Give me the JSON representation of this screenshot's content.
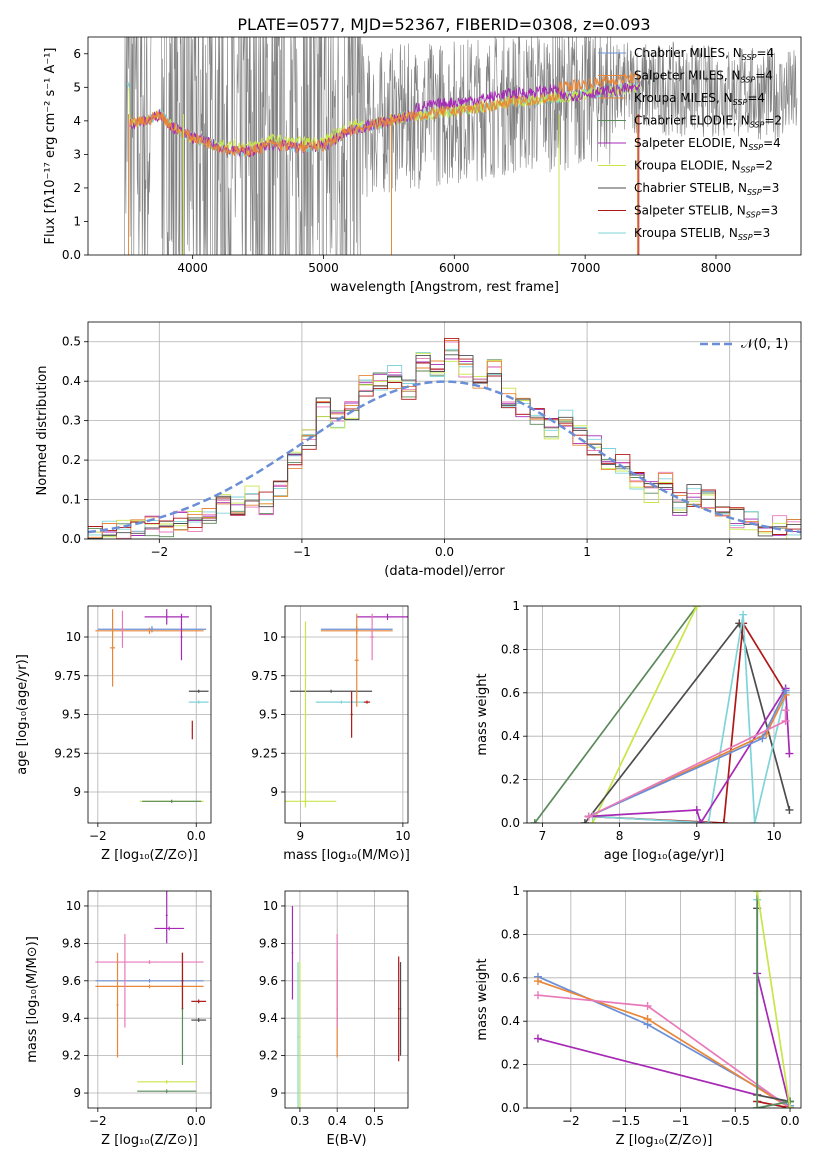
{
  "figure_title": "PLATE=0577, MJD=52367, FIBERID=0308, z=0.093",
  "colors": {
    "Chabrier MILES": "#6b8fd6",
    "Salpeter MILES": "#e8873a",
    "Kroupa MILES": "#e8873a",
    "Chabrier ELODIE": "#5a8a5a",
    "Salpeter ELODIE": "#a62ab5",
    "Kroupa ELODIE": "#c8e64a",
    "Chabrier STELIB": "#4d4d4d",
    "Salpeter STELIB": "#b01818",
    "Kroupa STELIB": "#7fd4d9",
    "pink": "#e87aba",
    "data": "#808080",
    "normal": "#6b8fd6"
  },
  "chart_data": [
    {
      "id": "spectrum",
      "type": "line",
      "title": "PLATE=0577, MJD=52367, FIBERID=0308, z=0.093",
      "xlabel": "wavelength [Angstrom, rest frame]",
      "ylabel": "Flux [fλ10⁻¹⁷ erg cm⁻² s⁻¹ A⁻¹]",
      "xlim": [
        3200,
        8650
      ],
      "ylim": [
        0,
        6.5
      ],
      "xticks": [
        4000,
        5000,
        6000,
        7000,
        8000
      ],
      "yticks": [
        0,
        1,
        2,
        3,
        4,
        5,
        6
      ],
      "grid": false,
      "legend": "upper-right",
      "legend_entries": [
        {
          "label": "Chabrier MILES, N",
          "sub": "SSP",
          "suffix": "=4",
          "color": "#6b8fd6"
        },
        {
          "label": "Salpeter MILES, N",
          "sub": "SSP",
          "suffix": "=4",
          "color": "#e8873a"
        },
        {
          "label": "Kroupa MILES, N",
          "sub": "SSP",
          "suffix": "=4",
          "color": "#e8873a"
        },
        {
          "label": "Chabrier ELODIE, N",
          "sub": "SSP",
          "suffix": "=2",
          "color": "#5a8a5a"
        },
        {
          "label": "Salpeter ELODIE, N",
          "sub": "SSP",
          "suffix": "=4",
          "color": "#a62ab5"
        },
        {
          "label": "Kroupa ELODIE, N",
          "sub": "SSP",
          "suffix": "=2",
          "color": "#c8e64a"
        },
        {
          "label": "Chabrier STELIB, N",
          "sub": "SSP",
          "suffix": "=3",
          "color": "#4d4d4d"
        },
        {
          "label": "Salpeter STELIB, N",
          "sub": "SSP",
          "suffix": "=3",
          "color": "#b01818"
        },
        {
          "label": "Kroupa STELIB, N",
          "sub": "SSP",
          "suffix": "=3",
          "color": "#7fd4d9"
        }
      ],
      "model_trend": {
        "x": [
          3520,
          3650,
          3750,
          3850,
          4000,
          4150,
          4300,
          4450,
          4600,
          4800,
          5000,
          5200,
          5400,
          5600,
          5800,
          6000,
          6200,
          6400,
          6600,
          6800,
          7000,
          7200,
          7400
        ],
        "y": [
          3.9,
          4.0,
          4.2,
          3.8,
          3.5,
          3.3,
          3.1,
          3.1,
          3.3,
          3.2,
          3.25,
          3.7,
          3.9,
          4.1,
          4.2,
          4.3,
          4.4,
          4.55,
          4.6,
          4.7,
          4.8,
          4.9,
          5.0
        ]
      }
    },
    {
      "id": "residuals",
      "type": "line",
      "xlabel": "(data-model)/error",
      "ylabel": "Normed distribution",
      "xlim": [
        -2.5,
        2.5
      ],
      "ylim": [
        0,
        0.55
      ],
      "xticks": [
        -2,
        -1,
        0,
        1,
        2
      ],
      "yticks": [
        0.0,
        0.1,
        0.2,
        0.3,
        0.4,
        0.5
      ],
      "grid": true,
      "legend": "upper-right",
      "legend_label": "𝒩(0, 1)",
      "hist_x": [
        -2.5,
        -2.4,
        -2.3,
        -2.2,
        -2.1,
        -2.0,
        -1.9,
        -1.8,
        -1.7,
        -1.6,
        -1.5,
        -1.4,
        -1.3,
        -1.2,
        -1.1,
        -1.0,
        -0.9,
        -0.8,
        -0.7,
        -0.6,
        -0.5,
        -0.4,
        -0.3,
        -0.2,
        -0.1,
        0.0,
        0.1,
        0.2,
        0.3,
        0.4,
        0.5,
        0.6,
        0.7,
        0.8,
        0.9,
        1.0,
        1.1,
        1.2,
        1.3,
        1.4,
        1.5,
        1.6,
        1.7,
        1.8,
        1.9,
        2.0,
        2.1,
        2.2,
        2.3,
        2.4
      ],
      "hist_y": [
        0.015,
        0.02,
        0.018,
        0.025,
        0.035,
        0.03,
        0.05,
        0.045,
        0.06,
        0.09,
        0.08,
        0.11,
        0.09,
        0.13,
        0.2,
        0.25,
        0.34,
        0.31,
        0.33,
        0.39,
        0.4,
        0.41,
        0.38,
        0.45,
        0.43,
        0.48,
        0.44,
        0.41,
        0.44,
        0.36,
        0.33,
        0.31,
        0.28,
        0.3,
        0.26,
        0.24,
        0.2,
        0.19,
        0.15,
        0.12,
        0.15,
        0.09,
        0.11,
        0.1,
        0.07,
        0.05,
        0.04,
        0.03,
        0.03,
        0.02
      ]
    },
    {
      "id": "age-vs-Z",
      "type": "scatter",
      "xlabel": "Z [log₁₀(Z/Z⊙)]",
      "ylabel": "age  [log₁₀(age/yr)]",
      "xlim": [
        -2.2,
        0.3
      ],
      "ylim": [
        8.8,
        10.2
      ],
      "xticks": [
        -2,
        0
      ],
      "yticks": [
        9.0,
        9.25,
        9.5,
        9.75,
        10.0
      ],
      "grid": true,
      "points": [
        {
          "x": -0.9,
          "y": 10.05,
          "xerr": 1.1,
          "yerr": 0.02,
          "color": "#6b8fd6"
        },
        {
          "x": -0.95,
          "y": 10.04,
          "xerr": 1.1,
          "yerr": 0.02,
          "color": "#e8873a"
        },
        {
          "x": -1.7,
          "y": 9.93,
          "xerr": 0.05,
          "yerr": 0.25,
          "color": "#e8873a"
        },
        {
          "x": -0.6,
          "y": 10.13,
          "xerr": 0.45,
          "yerr": 0.05,
          "color": "#a62ab5"
        },
        {
          "x": -0.3,
          "y": 10.0,
          "xerr": 0.02,
          "yerr": 0.15,
          "color": "#a62ab5"
        },
        {
          "x": 0.05,
          "y": 9.65,
          "xerr": 0.2,
          "yerr": 0.01,
          "color": "#4d4d4d"
        },
        {
          "x": 0.05,
          "y": 9.58,
          "xerr": 0.2,
          "yerr": 0.01,
          "color": "#7fd4d9"
        },
        {
          "x": -0.08,
          "y": 9.4,
          "xerr": 0.01,
          "yerr": 0.06,
          "color": "#b01818"
        },
        {
          "x": -0.5,
          "y": 8.94,
          "xerr": 0.65,
          "yerr": 0.01,
          "color": "#c8e64a"
        },
        {
          "x": -1.5,
          "y": 10.05,
          "xerr": 0.03,
          "yerr": 0.12,
          "color": "#e87aba"
        },
        {
          "x": -0.5,
          "y": 8.94,
          "xerr": 0.6,
          "yerr": 0.01,
          "color": "#5a8a5a"
        }
      ]
    },
    {
      "id": "age-vs-mass",
      "type": "scatter",
      "xlabel": "mass [log₁₀(M/M⊙)]",
      "ylabel": "",
      "xlim": [
        8.85,
        10.05
      ],
      "ylim": [
        8.8,
        10.2
      ],
      "xticks": [
        9,
        10
      ],
      "yticks": [
        9.0,
        9.25,
        9.5,
        9.75,
        10.0
      ],
      "grid": true,
      "points": [
        {
          "x": 9.55,
          "y": 10.05,
          "xerr": 0.35,
          "yerr": 0.02,
          "color": "#6b8fd6"
        },
        {
          "x": 9.55,
          "y": 10.04,
          "xerr": 0.35,
          "yerr": 0.02,
          "color": "#e8873a"
        },
        {
          "x": 9.85,
          "y": 10.13,
          "xerr": 0.3,
          "yerr": 0.02,
          "color": "#a62ab5"
        },
        {
          "x": 9.7,
          "y": 10.0,
          "xerr": 0.02,
          "yerr": 0.15,
          "color": "#e87aba"
        },
        {
          "x": 9.3,
          "y": 9.65,
          "xerr": 0.4,
          "yerr": 0.01,
          "color": "#4d4d4d"
        },
        {
          "x": 9.4,
          "y": 9.58,
          "xerr": 0.25,
          "yerr": 0.01,
          "color": "#7fd4d9"
        },
        {
          "x": 9.65,
          "y": 9.58,
          "xerr": 0.03,
          "yerr": 0.01,
          "color": "#b01818"
        },
        {
          "x": 9.5,
          "y": 9.5,
          "xerr": 0.01,
          "yerr": 0.15,
          "color": "#b01818"
        },
        {
          "x": 9.05,
          "y": 8.94,
          "xerr": 0.3,
          "yerr": 0.01,
          "color": "#c8e64a"
        },
        {
          "x": 9.05,
          "y": 9.5,
          "xerr": 0.01,
          "yerr": 0.6,
          "color": "#c8e64a"
        },
        {
          "x": 9.55,
          "y": 9.85,
          "xerr": 0.02,
          "yerr": 0.3,
          "color": "#e8873a"
        }
      ]
    },
    {
      "id": "massweight-vs-age",
      "type": "line",
      "xlabel": "age  [log₁₀(age/yr)]",
      "ylabel": "mass weight",
      "xlim": [
        6.8,
        10.35
      ],
      "ylim": [
        0,
        1
      ],
      "xticks": [
        7,
        8,
        9,
        10
      ],
      "yticks": [
        0.0,
        0.2,
        0.4,
        0.6,
        0.8,
        1.0
      ],
      "grid": true,
      "series": [
        {
          "color": "#5a8a5a",
          "x": [
            6.9,
            9.0
          ],
          "y": [
            0.0,
            1.0
          ]
        },
        {
          "color": "#c8e64a",
          "x": [
            7.65,
            9.0
          ],
          "y": [
            0.0,
            1.0
          ]
        },
        {
          "color": "#4d4d4d",
          "x": [
            7.55,
            9.55,
            10.2
          ],
          "y": [
            0.0,
            0.92,
            0.06
          ]
        },
        {
          "color": "#b01818",
          "x": [
            7.6,
            9.35,
            9.6,
            10.15
          ],
          "y": [
            0.03,
            0.0,
            0.92,
            0.6
          ]
        },
        {
          "color": "#7fd4d9",
          "x": [
            7.65,
            9.15,
            9.6,
            9.75,
            10.15
          ],
          "y": [
            0.03,
            0.0,
            0.96,
            0.0,
            0.6
          ]
        },
        {
          "color": "#a62ab5",
          "x": [
            7.6,
            9.0,
            9.05,
            10.15,
            10.2
          ],
          "y": [
            0.03,
            0.06,
            0.0,
            0.62,
            0.32
          ]
        },
        {
          "color": "#e8873a",
          "x": [
            7.6,
            9.9,
            10.15
          ],
          "y": [
            0.03,
            0.41,
            0.59
          ]
        },
        {
          "color": "#6b8fd6",
          "x": [
            7.6,
            9.85,
            10.15
          ],
          "y": [
            0.03,
            0.39,
            0.61
          ]
        },
        {
          "color": "#e87aba",
          "x": [
            7.6,
            10.15,
            10.15
          ],
          "y": [
            0.03,
            0.47,
            0.52
          ]
        }
      ]
    },
    {
      "id": "mass-vs-Z",
      "type": "scatter",
      "xlabel": "Z [log₁₀(Z/Z⊙)]",
      "ylabel": "mass [log₁₀(M/M⊙)]",
      "xlim": [
        -2.2,
        0.3
      ],
      "ylim": [
        8.92,
        10.08
      ],
      "xticks": [
        -2,
        0
      ],
      "yticks": [
        9.0,
        9.2,
        9.4,
        9.6,
        9.8,
        10.0
      ],
      "grid": true,
      "points": [
        {
          "x": -0.95,
          "y": 9.6,
          "xerr": 1.1,
          "yerr": 0.01,
          "color": "#6b8fd6"
        },
        {
          "x": -0.95,
          "y": 9.57,
          "xerr": 1.1,
          "yerr": 0.01,
          "color": "#e8873a"
        },
        {
          "x": -0.95,
          "y": 9.7,
          "xerr": 1.1,
          "yerr": 0.01,
          "color": "#e87aba"
        },
        {
          "x": -1.6,
          "y": 9.47,
          "xerr": 0.02,
          "yerr": 0.28,
          "color": "#e8873a"
        },
        {
          "x": -1.45,
          "y": 9.6,
          "xerr": 0.02,
          "yerr": 0.25,
          "color": "#e87aba"
        },
        {
          "x": -0.55,
          "y": 9.88,
          "xerr": 0.3,
          "yerr": 0.01,
          "color": "#a62ab5"
        },
        {
          "x": -0.6,
          "y": 9.95,
          "xerr": 0.02,
          "yerr": 0.15,
          "color": "#a62ab5"
        },
        {
          "x": 0.05,
          "y": 9.49,
          "xerr": 0.15,
          "yerr": 0.01,
          "color": "#b01818"
        },
        {
          "x": 0.05,
          "y": 9.39,
          "xerr": 0.15,
          "yerr": 0.01,
          "color": "#4d4d4d"
        },
        {
          "x": -0.28,
          "y": 9.45,
          "xerr": 0.02,
          "yerr": 0.3,
          "color": "#5a8a5a"
        },
        {
          "x": -0.6,
          "y": 9.06,
          "xerr": 0.6,
          "yerr": 0.01,
          "color": "#c8e64a"
        },
        {
          "x": -0.6,
          "y": 9.01,
          "xerr": 0.6,
          "yerr": 0.01,
          "color": "#5a8a5a"
        },
        {
          "x": -0.28,
          "y": 9.6,
          "xerr": 0.02,
          "yerr": 0.15,
          "color": "#b01818"
        }
      ]
    },
    {
      "id": "mass-vs-ebv",
      "type": "scatter",
      "xlabel": "E(B-V)",
      "ylabel": "",
      "xlim": [
        0.26,
        0.59
      ],
      "ylim": [
        8.92,
        10.08
      ],
      "xticks": [
        0.3,
        0.4,
        0.5
      ],
      "yticks": [
        9.0,
        9.2,
        9.4,
        9.6,
        9.8,
        10.0
      ],
      "grid": true,
      "points": [
        {
          "x": 0.28,
          "y": 9.75,
          "xerr": 0.002,
          "yerr": 0.25,
          "color": "#a62ab5"
        },
        {
          "x": 0.295,
          "y": 9.3,
          "xerr": 0.002,
          "yerr": 0.4,
          "color": "#7fd4d9"
        },
        {
          "x": 0.3,
          "y": 9.3,
          "xerr": 0.002,
          "yerr": 0.4,
          "color": "#c8e64a"
        },
        {
          "x": 0.4,
          "y": 9.45,
          "xerr": 0.002,
          "yerr": 0.26,
          "color": "#e8873a"
        },
        {
          "x": 0.4,
          "y": 9.6,
          "xerr": 0.002,
          "yerr": 0.25,
          "color": "#e87aba"
        },
        {
          "x": 0.565,
          "y": 9.45,
          "xerr": 0.002,
          "yerr": 0.28,
          "color": "#b01818"
        },
        {
          "x": 0.57,
          "y": 9.45,
          "xerr": 0.002,
          "yerr": 0.25,
          "color": "#4d4d4d"
        }
      ]
    },
    {
      "id": "massweight-vs-Z",
      "type": "line",
      "xlabel": "Z [log₁₀(Z/Z⊙)]",
      "ylabel": "mass weight",
      "xlim": [
        -2.4,
        0.1
      ],
      "ylim": [
        0,
        1
      ],
      "xticks": [
        -2.0,
        -1.5,
        -1.0,
        -0.5,
        0.0
      ],
      "yticks": [
        0.0,
        0.2,
        0.4,
        0.6,
        0.8,
        1.0
      ],
      "grid": true,
      "series": [
        {
          "color": "#6b8fd6",
          "x": [
            -2.3,
            -1.3,
            0.0
          ],
          "y": [
            0.605,
            0.385,
            0.01
          ]
        },
        {
          "color": "#e8873a",
          "x": [
            -2.3,
            -1.3,
            0.0
          ],
          "y": [
            0.585,
            0.41,
            0.0
          ]
        },
        {
          "color": "#e87aba",
          "x": [
            -2.3,
            -1.3,
            0.0
          ],
          "y": [
            0.52,
            0.47,
            0.0
          ]
        },
        {
          "color": "#a62ab5",
          "x": [
            -2.3,
            -0.3,
            -0.3,
            0.0,
            0.0
          ],
          "y": [
            0.32,
            0.06,
            0.62,
            0.0,
            0.03
          ]
        },
        {
          "color": "#4d4d4d",
          "x": [
            -0.3,
            -0.3,
            0.0
          ],
          "y": [
            0.92,
            0.06,
            0.03
          ]
        },
        {
          "color": "#b01818",
          "x": [
            -0.3,
            0.0
          ],
          "y": [
            0.03,
            0.0
          ]
        },
        {
          "color": "#7fd4d9",
          "x": [
            -0.3,
            -0.3,
            0.0,
            0.0
          ],
          "y": [
            0.96,
            0.0,
            0.03,
            0.0
          ]
        },
        {
          "color": "#5a8a5a",
          "x": [
            -0.3,
            -0.3,
            0.0
          ],
          "y": [
            1.0,
            0.0,
            0.03
          ]
        },
        {
          "color": "#c8e64a",
          "x": [
            -0.3,
            0.0
          ],
          "y": [
            1.0,
            0.0
          ]
        }
      ]
    }
  ]
}
